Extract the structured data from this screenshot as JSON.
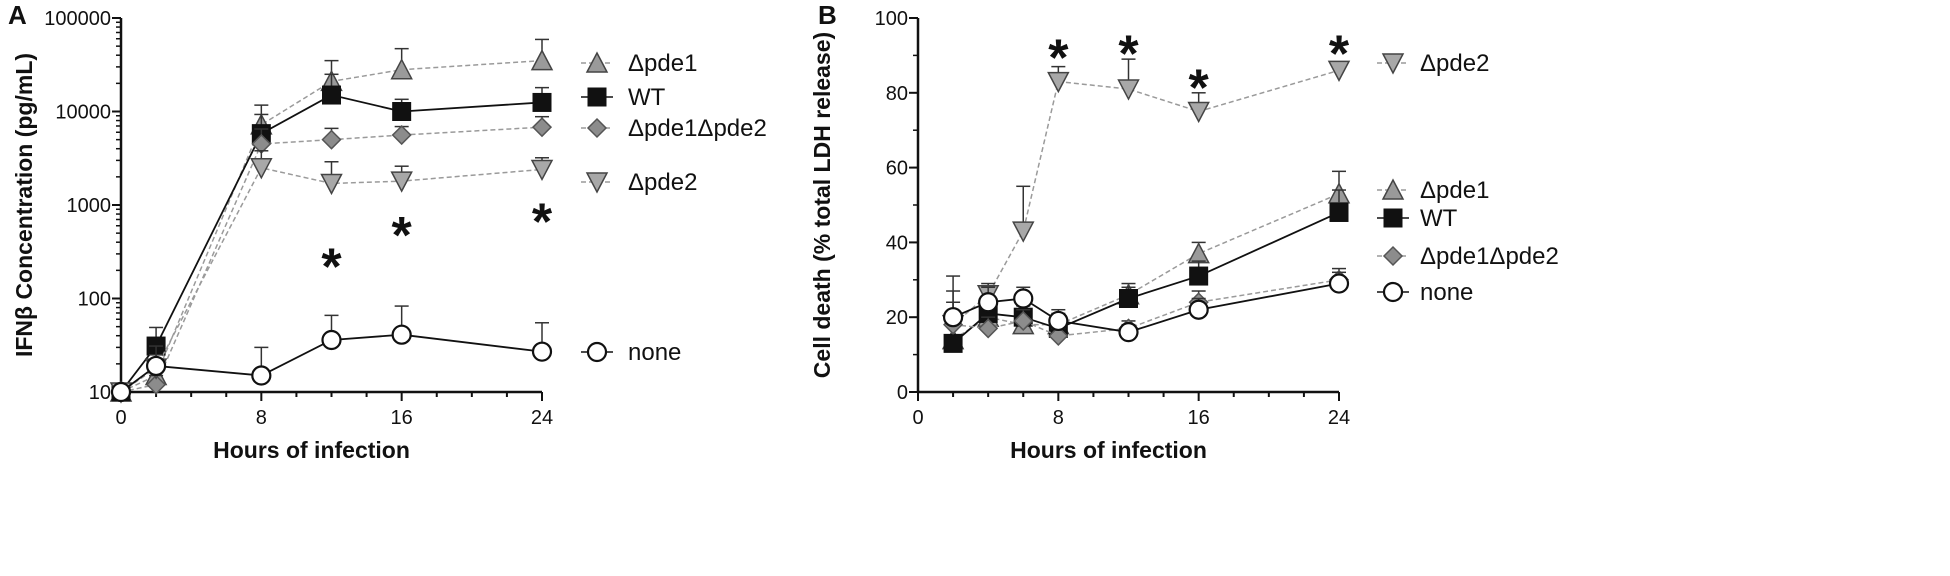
{
  "chart_data": [
    {
      "type": "line",
      "panel": "A",
      "xlabel": "Hours of infection",
      "ylabel": "IFNβ Concentration (pg/mL)",
      "y_scale": "log",
      "xlim": [
        0,
        24
      ],
      "ylim": [
        10,
        100000
      ],
      "x_ticks": [
        "0",
        "8",
        "16",
        "24"
      ],
      "y_ticks": [
        "10",
        "100",
        "1000",
        "10000",
        "100000"
      ],
      "grid": false,
      "legend_placement": "right",
      "series": [
        {
          "name": "Δpde1",
          "marker": "triangle-up",
          "color": "#9a9a9a",
          "line": "dashed",
          "x": [
            0,
            2,
            8,
            12,
            16,
            24
          ],
          "y": [
            10,
            15,
            7200,
            21000,
            28000,
            35000
          ],
          "err": [
            0,
            5,
            4500,
            14000,
            19000,
            24000
          ]
        },
        {
          "name": "WT",
          "marker": "square",
          "color": "#111111",
          "line": "solid",
          "x": [
            0,
            2,
            8,
            12,
            16,
            24
          ],
          "y": [
            10,
            31,
            5800,
            15000,
            10000,
            12500
          ],
          "err": [
            0,
            18,
            3500,
            10000,
            3500,
            5500
          ]
        },
        {
          "name": "Δpde1Δpde2",
          "marker": "diamond",
          "color": "#8c8c8c",
          "line": "dashed",
          "x": [
            0,
            2,
            8,
            12,
            16,
            24
          ],
          "y": [
            10,
            12,
            4500,
            5000,
            5600,
            6800
          ],
          "err": [
            0,
            3,
            2000,
            1600,
            1300,
            2000
          ]
        },
        {
          "name": "Δpde2",
          "marker": "triangle-down",
          "color": "#a8a8a8",
          "line": "dashed",
          "x": [
            0,
            2,
            8,
            12,
            16,
            24
          ],
          "y": [
            10,
            18,
            2500,
            1700,
            1800,
            2400
          ],
          "err": [
            0,
            7,
            1300,
            1200,
            800,
            800
          ]
        },
        {
          "name": "none",
          "marker": "circle",
          "color": "#111111",
          "line": "solid",
          "x": [
            0,
            2,
            8,
            12,
            16,
            24
          ],
          "y": [
            10,
            19,
            15,
            36,
            41,
            27
          ],
          "err": [
            0,
            12,
            15,
            30,
            42,
            28
          ]
        }
      ],
      "annotations": [
        {
          "text": "*",
          "x": 12,
          "y": 230
        },
        {
          "text": "*",
          "x": 16,
          "y": 500
        },
        {
          "text": "*",
          "x": 24,
          "y": 700
        }
      ]
    },
    {
      "type": "line",
      "panel": "B",
      "xlabel": "Hours of infection",
      "ylabel": "Cell death (% total LDH release)",
      "y_scale": "linear",
      "xlim": [
        0,
        24
      ],
      "ylim": [
        0,
        100
      ],
      "x_ticks": [
        "0",
        "8",
        "16",
        "24"
      ],
      "y_ticks": [
        "0",
        "20",
        "40",
        "60",
        "80",
        "100"
      ],
      "grid": false,
      "legend_placement": "right",
      "series": [
        {
          "name": "Δpde2",
          "marker": "triangle-down",
          "color": "#a8a8a8",
          "line": "dashed",
          "x": [
            2,
            4,
            6,
            8,
            12,
            16,
            24
          ],
          "y": [
            18,
            26,
            43,
            83,
            81,
            75,
            86
          ],
          "err": [
            9,
            3,
            12,
            4,
            8,
            5,
            2
          ]
        },
        {
          "name": "Δpde1",
          "marker": "triangle-up",
          "color": "#9a9a9a",
          "line": "dashed",
          "x": [
            2,
            4,
            6,
            8,
            12,
            16,
            24
          ],
          "y": [
            14,
            20,
            18,
            18,
            26,
            37,
            53
          ],
          "err": [
            7,
            4,
            3,
            3,
            3,
            3,
            6
          ]
        },
        {
          "name": "WT",
          "marker": "square",
          "color": "#111111",
          "line": "solid",
          "x": [
            2,
            4,
            6,
            8,
            12,
            16,
            24
          ],
          "y": [
            13,
            21,
            20,
            17,
            25,
            31,
            48
          ],
          "err": [
            6,
            3,
            3,
            3,
            3,
            4,
            6
          ]
        },
        {
          "name": "Δpde1Δpde2",
          "marker": "diamond",
          "color": "#8c8c8c",
          "line": "dashed",
          "x": [
            2,
            4,
            6,
            8,
            12,
            16,
            24
          ],
          "y": [
            18,
            17,
            19,
            15,
            17,
            24,
            30
          ],
          "err": [
            6,
            3,
            3,
            2,
            2,
            3,
            3
          ]
        },
        {
          "name": "none",
          "marker": "circle",
          "color": "#111111",
          "line": "solid",
          "x": [
            2,
            4,
            6,
            8,
            12,
            16,
            24
          ],
          "y": [
            20,
            24,
            25,
            19,
            16,
            22,
            29
          ],
          "err": [
            11,
            4,
            3,
            3,
            2,
            3,
            3
          ]
        }
      ],
      "annotations": [
        {
          "text": "*",
          "x": 8,
          "y": 90
        },
        {
          "text": "*",
          "x": 12,
          "y": 91
        },
        {
          "text": "*",
          "x": 16,
          "y": 82
        },
        {
          "text": "*",
          "x": 24,
          "y": 91
        }
      ]
    }
  ]
}
